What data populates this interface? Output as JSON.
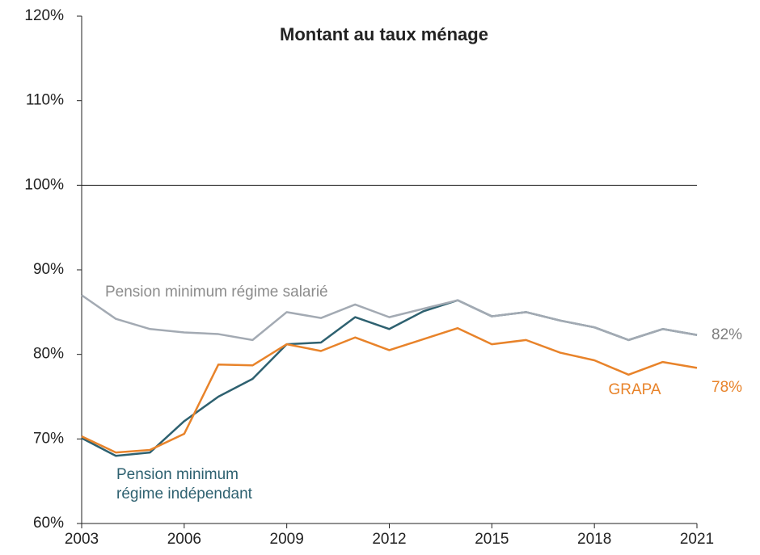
{
  "chart_data": {
    "type": "line",
    "title": "Montant au taux ménage",
    "x": [
      2003,
      2004,
      2005,
      2006,
      2007,
      2008,
      2009,
      2010,
      2011,
      2012,
      2013,
      2014,
      2015,
      2016,
      2017,
      2018,
      2019,
      2020,
      2021
    ],
    "series": [
      {
        "name": "Pension minimum régime indépendant",
        "color": "#2e6170",
        "values": [
          70.1,
          68,
          68.4,
          72.1,
          75,
          77.1,
          81.2,
          81.4,
          84.4,
          83,
          85.1,
          86.4,
          84.5,
          85,
          84,
          83.2,
          81.7,
          83,
          82.3
        ]
      },
      {
        "name": "GRAPA",
        "color": "#e8832a",
        "values": [
          70.3,
          68.4,
          68.7,
          70.6,
          78.8,
          78.7,
          81.2,
          80.4,
          82,
          80.5,
          81.8,
          83.1,
          81.2,
          81.7,
          80.2,
          79.3,
          77.6,
          79.1,
          78.4
        ]
      },
      {
        "name": "Pension minimum régime salarié",
        "color": "#a3aab3",
        "values": [
          87,
          84.2,
          83,
          82.6,
          82.4,
          81.7,
          85,
          84.3,
          85.9,
          84.4,
          85.4,
          86.4,
          84.5,
          85,
          84,
          83.2,
          81.7,
          83,
          82.3
        ]
      }
    ],
    "annotations": [
      {
        "text": [
          "Pension minimum régime salarié"
        ],
        "color": "#8c8c8c"
      },
      {
        "text": [
          "Pension minimum",
          "régime indépendant"
        ],
        "color": "#2e6170"
      },
      {
        "text": [
          "GRAPA"
        ],
        "color": "#e8832a"
      },
      {
        "text": [
          "82%"
        ],
        "color": "#7f7f7f"
      },
      {
        "text": [
          "78%"
        ],
        "color": "#e8832a"
      }
    ],
    "reference_line": 100,
    "xlim": [
      2003,
      2021
    ],
    "xticks": [
      2003,
      2006,
      2009,
      2012,
      2015,
      2018,
      2021
    ],
    "ylim": [
      60,
      120
    ],
    "yticks": [
      {
        "value": 60,
        "label": "60%"
      },
      {
        "value": 70,
        "label": "70%"
      },
      {
        "value": 80,
        "label": "80%"
      },
      {
        "value": 90,
        "label": "90%"
      },
      {
        "value": 100,
        "label": "100%"
      },
      {
        "value": 110,
        "label": "110%"
      },
      {
        "value": 120,
        "label": "120%"
      }
    ],
    "grid": false
  }
}
